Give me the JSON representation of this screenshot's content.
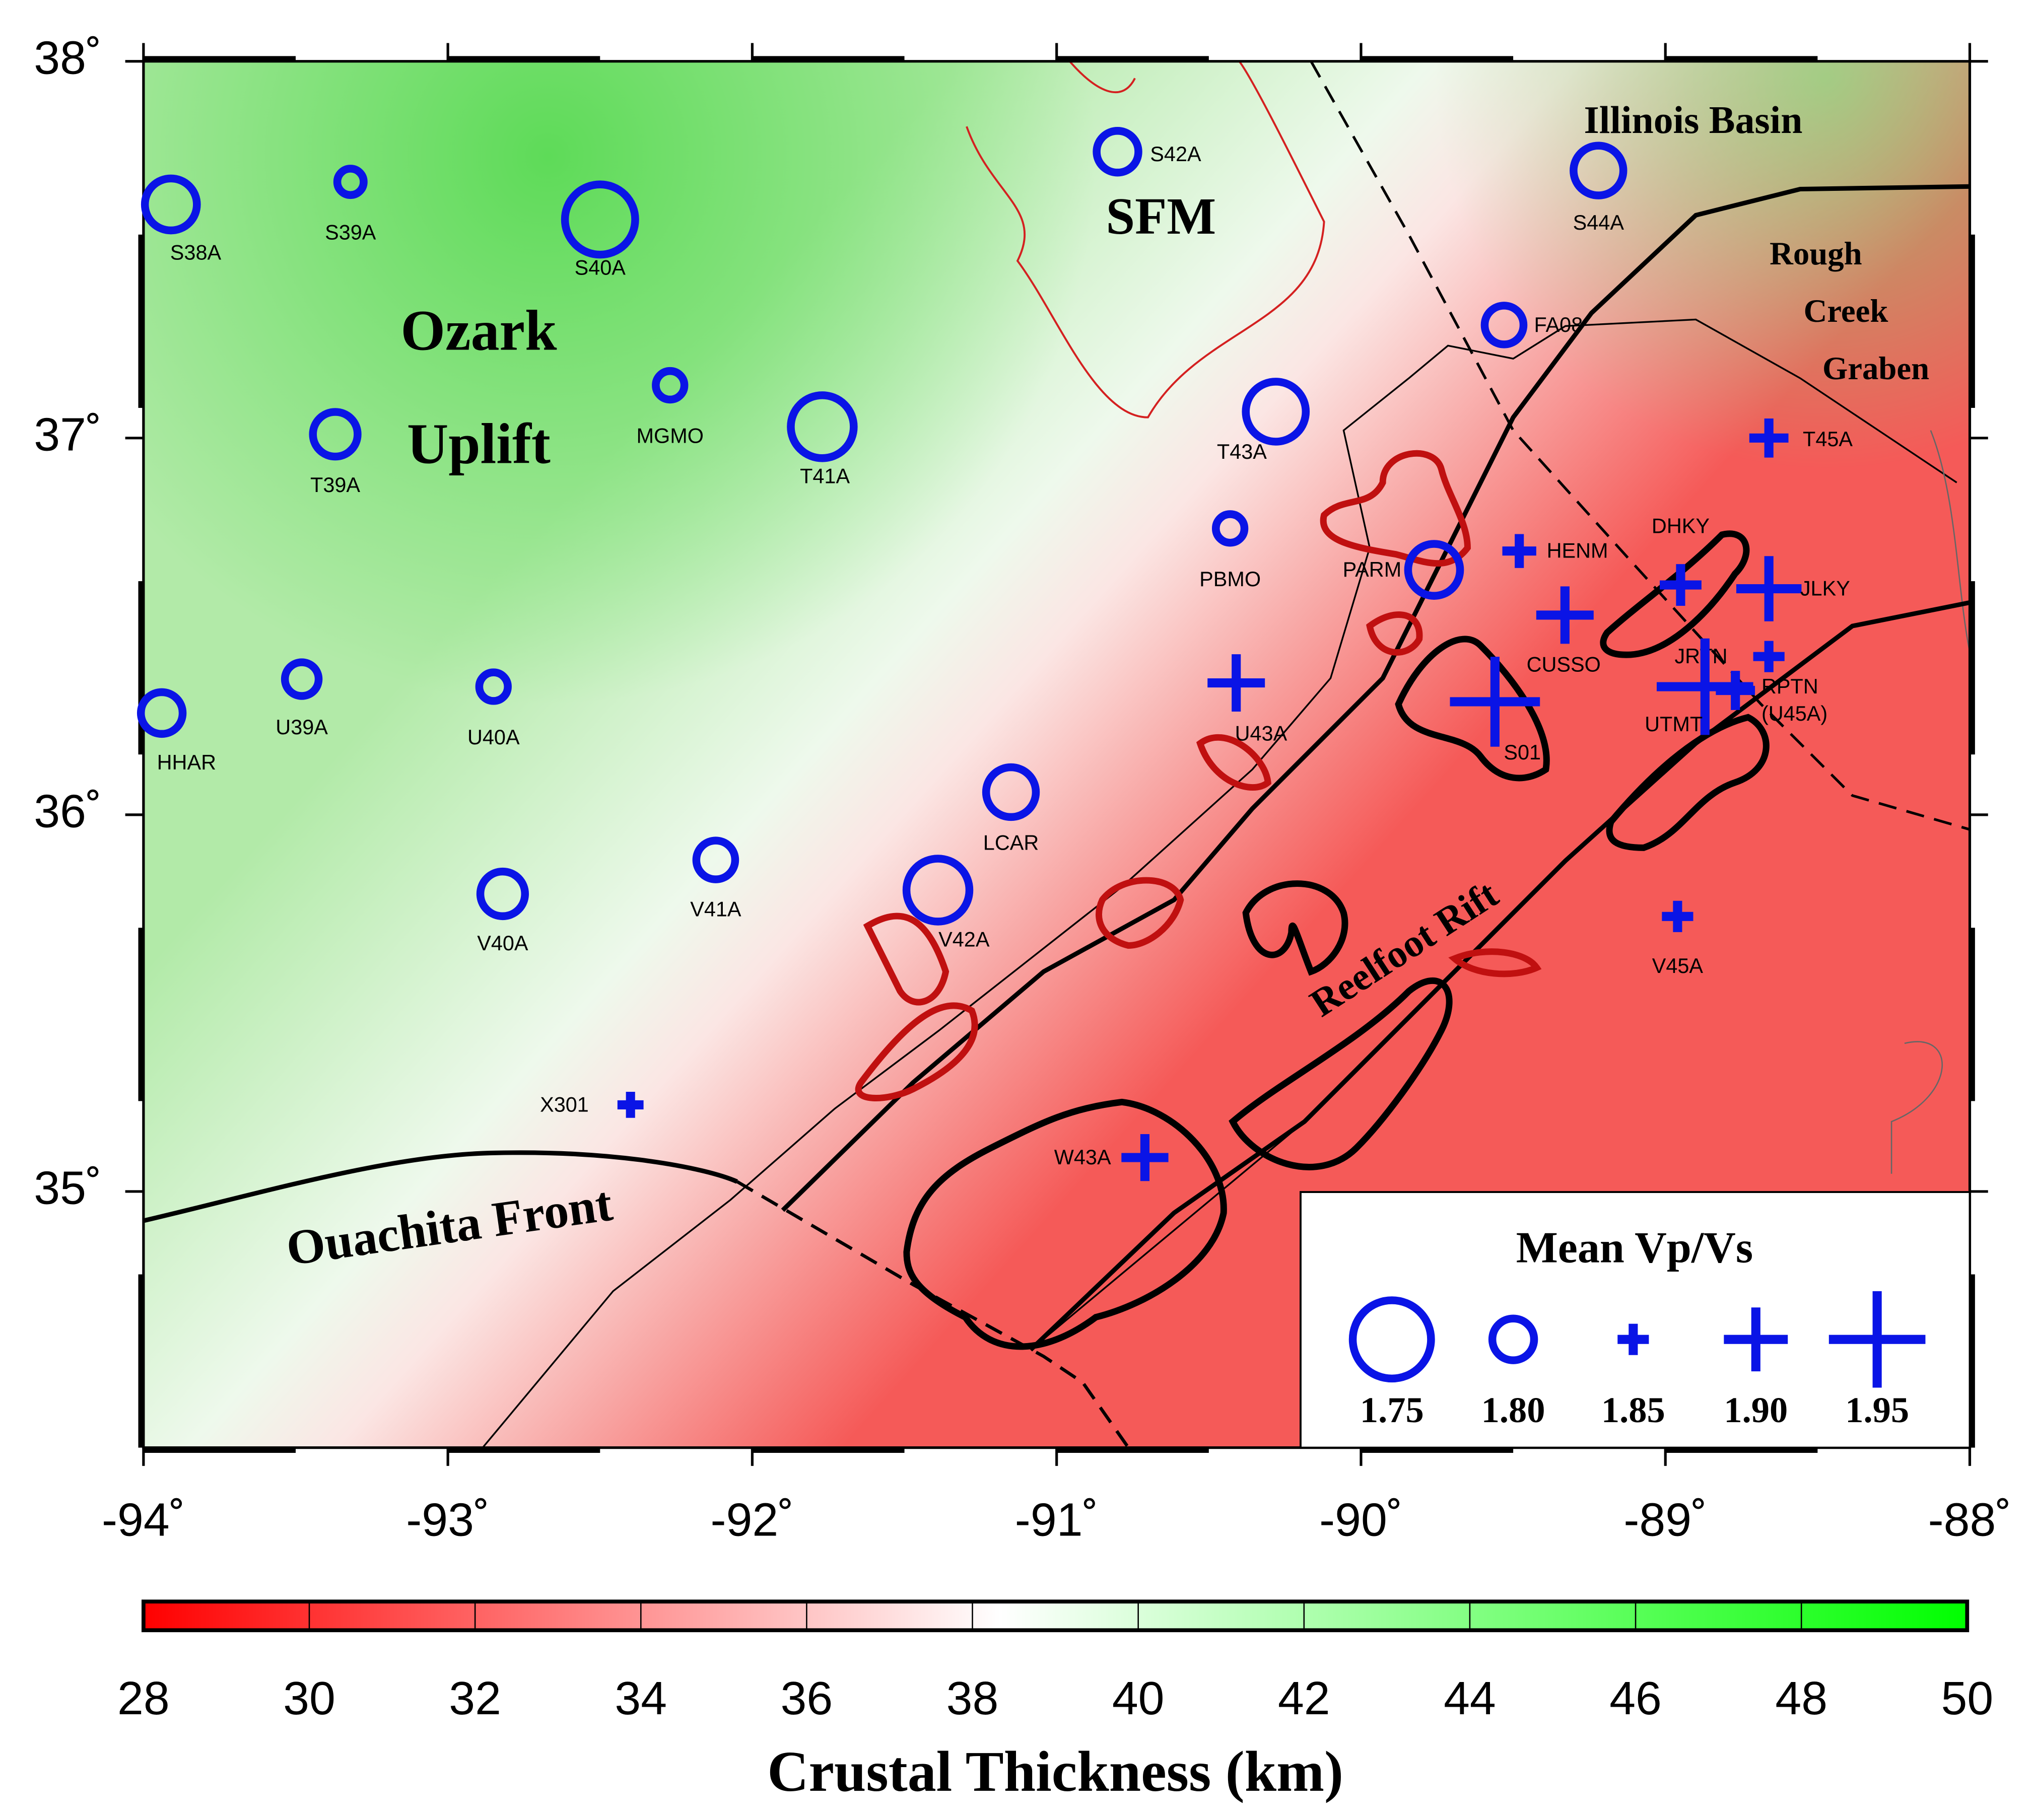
{
  "map": {
    "xlim": [
      -94,
      -88
    ],
    "ylim": [
      34.32,
      38
    ],
    "xticks": [
      {
        "value": -94,
        "label": "-94˚"
      },
      {
        "value": -93,
        "label": "-93˚"
      },
      {
        "value": -92,
        "label": "-92˚"
      },
      {
        "value": -91,
        "label": "-91˚"
      },
      {
        "value": -90,
        "label": "-90˚"
      },
      {
        "value": -89,
        "label": "-89˚"
      },
      {
        "value": -88,
        "label": "-88˚"
      }
    ],
    "yticks": [
      {
        "value": 35,
        "label": "35˚"
      },
      {
        "value": 36,
        "label": "36˚"
      },
      {
        "value": 37,
        "label": "37˚"
      },
      {
        "value": 38,
        "label": "38˚"
      }
    ],
    "regions": [
      "Ozark",
      "Uplift",
      "SFM",
      "Illinois Basin",
      "Rough",
      "Creek",
      "Graben",
      "Ouachita Front",
      "Reelfoot Rift"
    ],
    "stations": [
      {
        "label": "S38A",
        "lon": -93.91,
        "lat": 37.62,
        "vpvs": 1.786
      },
      {
        "label": "S39A",
        "lon": -93.32,
        "lat": 37.68,
        "vpvs": 1.821
      },
      {
        "label": "S40A",
        "lon": -92.5,
        "lat": 37.58,
        "vpvs": 1.761
      },
      {
        "label": "MGMO",
        "lon": -92.27,
        "lat": 37.14,
        "vpvs": 1.818
      },
      {
        "label": "T39A",
        "lon": -93.37,
        "lat": 37.01,
        "vpvs": 1.796
      },
      {
        "label": "T41A",
        "lon": -91.77,
        "lat": 37.03,
        "vpvs": 1.771
      },
      {
        "label": "S42A",
        "lon": -90.8,
        "lat": 37.76,
        "vpvs": 1.8
      },
      {
        "label": "S44A",
        "lon": -89.22,
        "lat": 37.71,
        "vpvs": 1.789
      },
      {
        "label": "FA08",
        "lon": -89.53,
        "lat": 37.3,
        "vpvs": 1.804
      },
      {
        "label": "T43A",
        "lon": -90.28,
        "lat": 37.07,
        "vpvs": 1.775
      },
      {
        "label": "PBMO",
        "lon": -90.43,
        "lat": 36.76,
        "vpvs": 1.818
      },
      {
        "label": "PARM",
        "lon": -89.76,
        "lat": 36.65,
        "vpvs": 1.786
      },
      {
        "label": "HHAR",
        "lon": -93.94,
        "lat": 36.27,
        "vpvs": 1.8
      },
      {
        "label": "U39A",
        "lon": -93.48,
        "lat": 36.36,
        "vpvs": 1.811
      },
      {
        "label": "U40A",
        "lon": -92.85,
        "lat": 36.34,
        "vpvs": 1.818
      },
      {
        "label": "LCAR",
        "lon": -91.15,
        "lat": 36.06,
        "vpvs": 1.789
      },
      {
        "label": "V41A",
        "lon": -92.12,
        "lat": 35.88,
        "vpvs": 1.804
      },
      {
        "label": "V40A",
        "lon": -92.82,
        "lat": 35.79,
        "vpvs": 1.796
      },
      {
        "label": "V42A",
        "lon": -91.39,
        "lat": 35.8,
        "vpvs": 1.771
      },
      {
        "label": "T45A",
        "lon": -88.66,
        "lat": 37.0,
        "vpvs": 1.862
      },
      {
        "label": "HENM",
        "lon": -89.48,
        "lat": 36.7,
        "vpvs": 1.854
      },
      {
        "label": "DHKY",
        "lon": -88.95,
        "lat": 36.61,
        "vpvs": 1.866
      },
      {
        "label": "JLKY",
        "lon": -88.66,
        "lat": 36.6,
        "vpvs": 1.902
      },
      {
        "label": "CUSSO",
        "lon": -89.33,
        "lat": 36.53,
        "vpvs": 1.89
      },
      {
        "label": "JRTN",
        "lon": -88.66,
        "lat": 36.42,
        "vpvs": 1.85
      },
      {
        "label": "UTMT",
        "lon": -88.87,
        "lat": 36.34,
        "vpvs": 1.95
      },
      {
        "label": "RPTN",
        "sublabel": "(U45A)",
        "lon": -88.77,
        "lat": 36.33,
        "vpvs": 1.862
      },
      {
        "label": "U43A",
        "lon": -90.41,
        "lat": 36.35,
        "vpvs": 1.89
      },
      {
        "label": "S01",
        "lon": -89.56,
        "lat": 36.3,
        "vpvs": 1.94
      },
      {
        "label": "V45A",
        "lon": -88.96,
        "lat": 35.73,
        "vpvs": 1.85
      },
      {
        "label": "W43A",
        "lon": -90.71,
        "lat": 35.09,
        "vpvs": 1.874
      },
      {
        "label": "X301",
        "lon": -92.4,
        "lat": 35.23,
        "vpvs": 1.842
      }
    ],
    "legend": {
      "title": "Mean Vp/Vs",
      "entries": [
        1.75,
        {
          "value": 1.8,
          "label": "1.80"
        },
        1.85,
        {
          "value": 1.9,
          "label": "1.90"
        },
        1.95
      ]
    }
  },
  "colorbar": {
    "title": "Crustal Thickness (km)",
    "range": [
      28,
      50
    ],
    "ticks": [
      28,
      30,
      32,
      34,
      36,
      38,
      40,
      42,
      44,
      46,
      48,
      50
    ]
  }
}
